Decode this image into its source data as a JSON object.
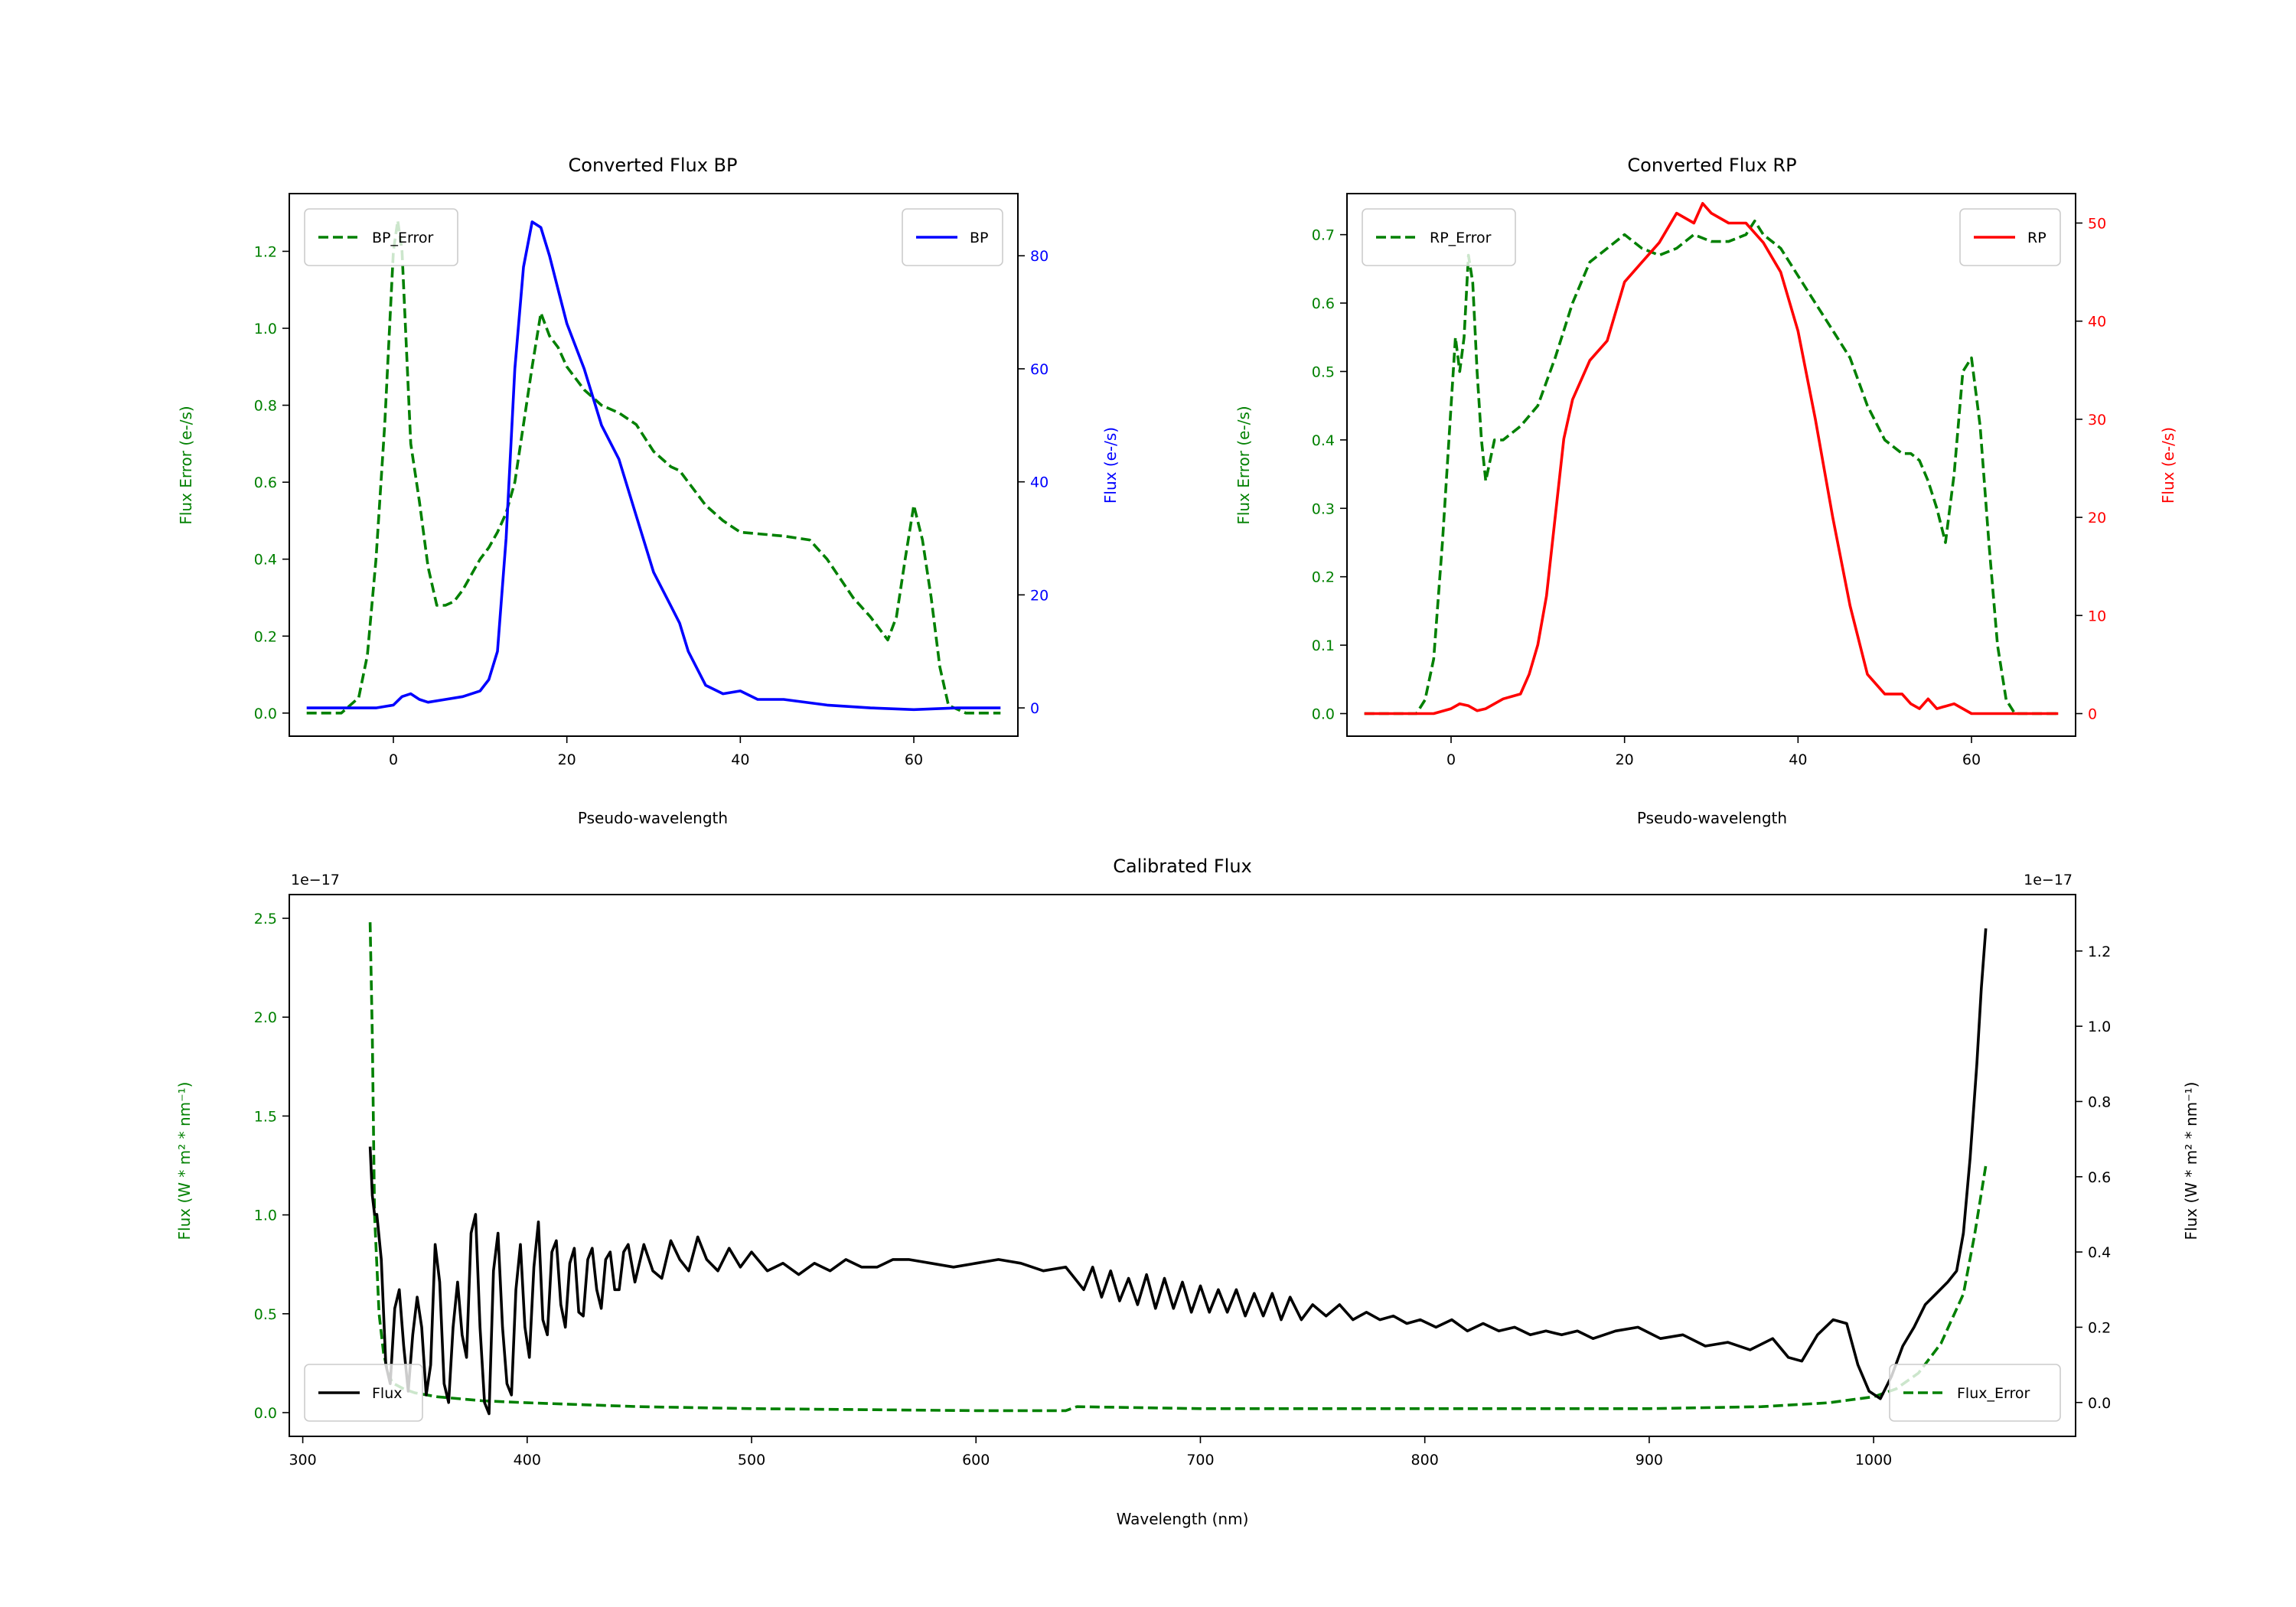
{
  "chart_data": [
    {
      "id": "bp",
      "type": "line",
      "title": "Converted Flux BP",
      "xlabel": "Pseudo-wavelength",
      "ylabel_left": "Flux Error (e-/s)",
      "ylabel_right": "Flux (e-/s)",
      "xlim": [
        -12,
        72
      ],
      "ylim_left": [
        -0.06,
        1.35
      ],
      "ylim_right": [
        -5,
        91
      ],
      "xticks": [
        0,
        20,
        40,
        60
      ],
      "yticks_left": [
        0.0,
        0.2,
        0.4,
        0.6,
        0.8,
        1.0,
        1.2
      ],
      "yticks_right": [
        0,
        20,
        40,
        60,
        80
      ],
      "left_tick_color": "#008000",
      "right_tick_color": "#0000ff",
      "series": [
        {
          "name": "BP_Error",
          "axis": "left",
          "color": "#008000",
          "dash": true,
          "legend": "upper left",
          "x": [
            -10,
            -6,
            -4,
            -3,
            -2,
            -1,
            0,
            0.5,
            1,
            1.5,
            2,
            3,
            4,
            5,
            6,
            7,
            8,
            9,
            10,
            11,
            12,
            13,
            14,
            15,
            16,
            17,
            18,
            19,
            20,
            22,
            24,
            26,
            28,
            30,
            32,
            33,
            34,
            35,
            36,
            38,
            40,
            45,
            48,
            50,
            53,
            55,
            56,
            57,
            58,
            59,
            60,
            61,
            62,
            63,
            64,
            66,
            70
          ],
          "values": [
            0.0,
            0.0,
            0.04,
            0.15,
            0.4,
            0.75,
            1.2,
            1.28,
            1.2,
            0.95,
            0.7,
            0.55,
            0.38,
            0.28,
            0.28,
            0.29,
            0.32,
            0.36,
            0.4,
            0.43,
            0.47,
            0.52,
            0.6,
            0.75,
            0.9,
            1.04,
            0.98,
            0.95,
            0.9,
            0.84,
            0.8,
            0.78,
            0.75,
            0.68,
            0.64,
            0.63,
            0.6,
            0.57,
            0.54,
            0.5,
            0.47,
            0.46,
            0.45,
            0.4,
            0.3,
            0.25,
            0.22,
            0.19,
            0.25,
            0.4,
            0.54,
            0.45,
            0.3,
            0.12,
            0.02,
            0.0,
            0.0
          ]
        },
        {
          "name": "BP",
          "axis": "right",
          "color": "#0000ff",
          "dash": false,
          "legend": "upper right",
          "x": [
            -10,
            -5,
            -2,
            0,
            1,
            2,
            3,
            4,
            6,
            8,
            10,
            11,
            12,
            13,
            14,
            15,
            16,
            17,
            18,
            19,
            20,
            22,
            24,
            26,
            28,
            30,
            32,
            33,
            34,
            36,
            38,
            40,
            42,
            45,
            50,
            55,
            60,
            65,
            70
          ],
          "values": [
            0,
            0,
            0,
            0.5,
            2,
            2.5,
            1.5,
            1,
            1.5,
            2,
            3,
            5,
            10,
            30,
            60,
            78,
            86,
            85,
            80,
            74,
            68,
            60,
            50,
            44,
            34,
            24,
            18,
            15,
            10,
            4,
            2.5,
            3,
            1.5,
            1.5,
            0.5,
            0,
            -0.3,
            0,
            0
          ]
        }
      ]
    },
    {
      "id": "rp",
      "type": "line",
      "title": "Converted Flux RP",
      "xlabel": "Pseudo-wavelength",
      "ylabel_left": "Flux Error (e-/s)",
      "ylabel_right": "Flux (e-/s)",
      "xlim": [
        -12,
        72
      ],
      "ylim_left": [
        -0.033,
        0.76
      ],
      "ylim_right": [
        -2.3,
        53
      ],
      "xticks": [
        0,
        20,
        40,
        60
      ],
      "yticks_left": [
        0.0,
        0.1,
        0.2,
        0.3,
        0.4,
        0.5,
        0.6,
        0.7
      ],
      "yticks_right": [
        0,
        10,
        20,
        30,
        40,
        50
      ],
      "left_tick_color": "#008000",
      "right_tick_color": "#ff0000",
      "series": [
        {
          "name": "RP_Error",
          "axis": "left",
          "color": "#008000",
          "dash": true,
          "legend": "upper left",
          "x": [
            -10,
            -4,
            -3,
            -2,
            -1,
            0,
            0.5,
            1,
            1.5,
            2,
            2.5,
            3,
            3.5,
            4,
            5,
            6,
            8,
            10,
            12,
            14,
            16,
            18,
            20,
            22,
            24,
            26,
            28,
            30,
            32,
            34,
            35,
            36,
            38,
            40,
            42,
            44,
            46,
            48,
            50,
            52,
            53,
            54,
            55,
            56,
            57,
            58,
            59,
            60,
            61,
            62,
            63,
            64,
            65,
            70
          ],
          "values": [
            0.0,
            0.0,
            0.02,
            0.08,
            0.25,
            0.45,
            0.55,
            0.5,
            0.55,
            0.67,
            0.63,
            0.5,
            0.4,
            0.34,
            0.4,
            0.4,
            0.42,
            0.45,
            0.52,
            0.6,
            0.66,
            0.68,
            0.7,
            0.68,
            0.67,
            0.68,
            0.7,
            0.69,
            0.69,
            0.7,
            0.72,
            0.7,
            0.68,
            0.64,
            0.6,
            0.56,
            0.52,
            0.45,
            0.4,
            0.38,
            0.38,
            0.37,
            0.34,
            0.3,
            0.25,
            0.35,
            0.5,
            0.52,
            0.42,
            0.25,
            0.1,
            0.02,
            0.0,
            0.0
          ]
        },
        {
          "name": "RP",
          "axis": "right",
          "color": "#ff0000",
          "dash": false,
          "legend": "upper right",
          "x": [
            -10,
            -5,
            -2,
            0,
            1,
            2,
            3,
            4,
            6,
            8,
            9,
            10,
            11,
            12,
            13,
            14,
            15,
            16,
            18,
            20,
            22,
            24,
            26,
            28,
            29,
            30,
            32,
            34,
            36,
            38,
            40,
            42,
            44,
            46,
            48,
            50,
            52,
            53,
            54,
            55,
            56,
            58,
            60,
            62,
            65,
            70
          ],
          "values": [
            0,
            0,
            0,
            0.5,
            1,
            0.8,
            0.3,
            0.5,
            1.5,
            2,
            4,
            7,
            12,
            20,
            28,
            32,
            34,
            36,
            38,
            44,
            46,
            48,
            51,
            50,
            52,
            51,
            50,
            50,
            48,
            45,
            39,
            30,
            20,
            11,
            4,
            2,
            2,
            1,
            0.5,
            1.5,
            0.5,
            1,
            0,
            0,
            0,
            0
          ]
        }
      ]
    },
    {
      "id": "cal",
      "type": "line",
      "title": "Calibrated Flux",
      "xlabel": "Wavelength (nm)",
      "ylabel_left": "Flux (W * m² * nm⁻¹)",
      "ylabel_right": "Flux (W * m² * nm⁻¹)",
      "offset_left": "1e−17",
      "offset_right": "1e−17",
      "xlim": [
        294,
        1090
      ],
      "ylim_left": [
        -0.12,
        2.62
      ],
      "ylim_right": [
        -0.09,
        1.35
      ],
      "xticks": [
        300,
        400,
        500,
        600,
        700,
        800,
        900,
        1000
      ],
      "yticks_left": [
        0.0,
        0.5,
        1.0,
        1.5,
        2.0,
        2.5
      ],
      "yticks_right": [
        0.0,
        0.2,
        0.4,
        0.6,
        0.8,
        1.0,
        1.2
      ],
      "left_tick_color": "#008000",
      "right_tick_color": "#000000",
      "series": [
        {
          "name": "Flux_Error",
          "axis": "left",
          "color": "#008000",
          "dash": true,
          "legend": "lower right",
          "x": [
            330,
            331,
            332,
            334,
            336,
            338,
            340,
            345,
            350,
            360,
            380,
            400,
            450,
            500,
            600,
            640,
            645,
            700,
            800,
            900,
            950,
            980,
            1000,
            1010,
            1020,
            1030,
            1040,
            1045,
            1050
          ],
          "values": [
            2.48,
            1.9,
            1.0,
            0.5,
            0.3,
            0.2,
            0.15,
            0.12,
            0.1,
            0.08,
            0.06,
            0.05,
            0.03,
            0.02,
            0.01,
            0.01,
            0.03,
            0.02,
            0.02,
            0.02,
            0.03,
            0.05,
            0.08,
            0.12,
            0.2,
            0.35,
            0.6,
            0.9,
            1.25
          ]
        },
        {
          "name": "Flux",
          "axis": "right",
          "color": "#000000",
          "dash": false,
          "legend": "lower left",
          "x": [
            330,
            331,
            332,
            333,
            335,
            337,
            339,
            341,
            343,
            345,
            347,
            349,
            351,
            353,
            355,
            357,
            359,
            361,
            363,
            365,
            367,
            369,
            371,
            373,
            375,
            377,
            379,
            381,
            383,
            385,
            387,
            389,
            391,
            393,
            395,
            397,
            399,
            401,
            403,
            405,
            407,
            409,
            411,
            413,
            415,
            417,
            419,
            421,
            423,
            425,
            427,
            429,
            431,
            433,
            435,
            437,
            439,
            441,
            443,
            445,
            448,
            452,
            456,
            460,
            464,
            468,
            472,
            476,
            480,
            485,
            490,
            495,
            500,
            507,
            514,
            521,
            528,
            535,
            542,
            549,
            556,
            563,
            570,
            580,
            590,
            600,
            610,
            620,
            630,
            640,
            644,
            648,
            652,
            656,
            660,
            664,
            668,
            672,
            676,
            680,
            684,
            688,
            692,
            696,
            700,
            704,
            708,
            712,
            716,
            720,
            724,
            728,
            732,
            736,
            740,
            745,
            750,
            756,
            762,
            768,
            774,
            780,
            786,
            792,
            798,
            805,
            812,
            819,
            826,
            833,
            840,
            847,
            854,
            861,
            868,
            875,
            885,
            895,
            905,
            915,
            925,
            935,
            945,
            955,
            962,
            968,
            975,
            982,
            988,
            993,
            998,
            1003,
            1008,
            1013,
            1018,
            1023,
            1028,
            1033,
            1037,
            1040,
            1043,
            1046,
            1048,
            1050
          ],
          "values": [
            0.68,
            0.55,
            0.5,
            0.5,
            0.38,
            0.1,
            0.05,
            0.25,
            0.3,
            0.15,
            0.03,
            0.18,
            0.28,
            0.2,
            0.02,
            0.1,
            0.42,
            0.32,
            0.05,
            0.0,
            0.2,
            0.32,
            0.18,
            0.12,
            0.45,
            0.5,
            0.2,
            0.0,
            -0.03,
            0.35,
            0.45,
            0.2,
            0.05,
            0.02,
            0.3,
            0.42,
            0.2,
            0.12,
            0.36,
            0.48,
            0.22,
            0.18,
            0.4,
            0.43,
            0.26,
            0.2,
            0.37,
            0.41,
            0.24,
            0.23,
            0.38,
            0.41,
            0.3,
            0.25,
            0.38,
            0.4,
            0.3,
            0.3,
            0.4,
            0.42,
            0.32,
            0.42,
            0.35,
            0.33,
            0.43,
            0.38,
            0.35,
            0.44,
            0.38,
            0.35,
            0.41,
            0.36,
            0.4,
            0.35,
            0.37,
            0.34,
            0.37,
            0.35,
            0.38,
            0.36,
            0.36,
            0.38,
            0.38,
            0.37,
            0.36,
            0.37,
            0.38,
            0.37,
            0.35,
            0.36,
            0.33,
            0.3,
            0.36,
            0.28,
            0.35,
            0.27,
            0.33,
            0.26,
            0.34,
            0.25,
            0.33,
            0.25,
            0.32,
            0.24,
            0.31,
            0.24,
            0.3,
            0.24,
            0.3,
            0.23,
            0.29,
            0.23,
            0.29,
            0.22,
            0.28,
            0.22,
            0.26,
            0.23,
            0.26,
            0.22,
            0.24,
            0.22,
            0.23,
            0.21,
            0.22,
            0.2,
            0.22,
            0.19,
            0.21,
            0.19,
            0.2,
            0.18,
            0.19,
            0.18,
            0.19,
            0.17,
            0.19,
            0.2,
            0.17,
            0.18,
            0.15,
            0.16,
            0.14,
            0.17,
            0.12,
            0.11,
            0.18,
            0.22,
            0.21,
            0.1,
            0.03,
            0.01,
            0.07,
            0.15,
            0.2,
            0.26,
            0.29,
            0.32,
            0.35,
            0.45,
            0.65,
            0.9,
            1.1,
            1.26
          ]
        }
      ]
    }
  ]
}
